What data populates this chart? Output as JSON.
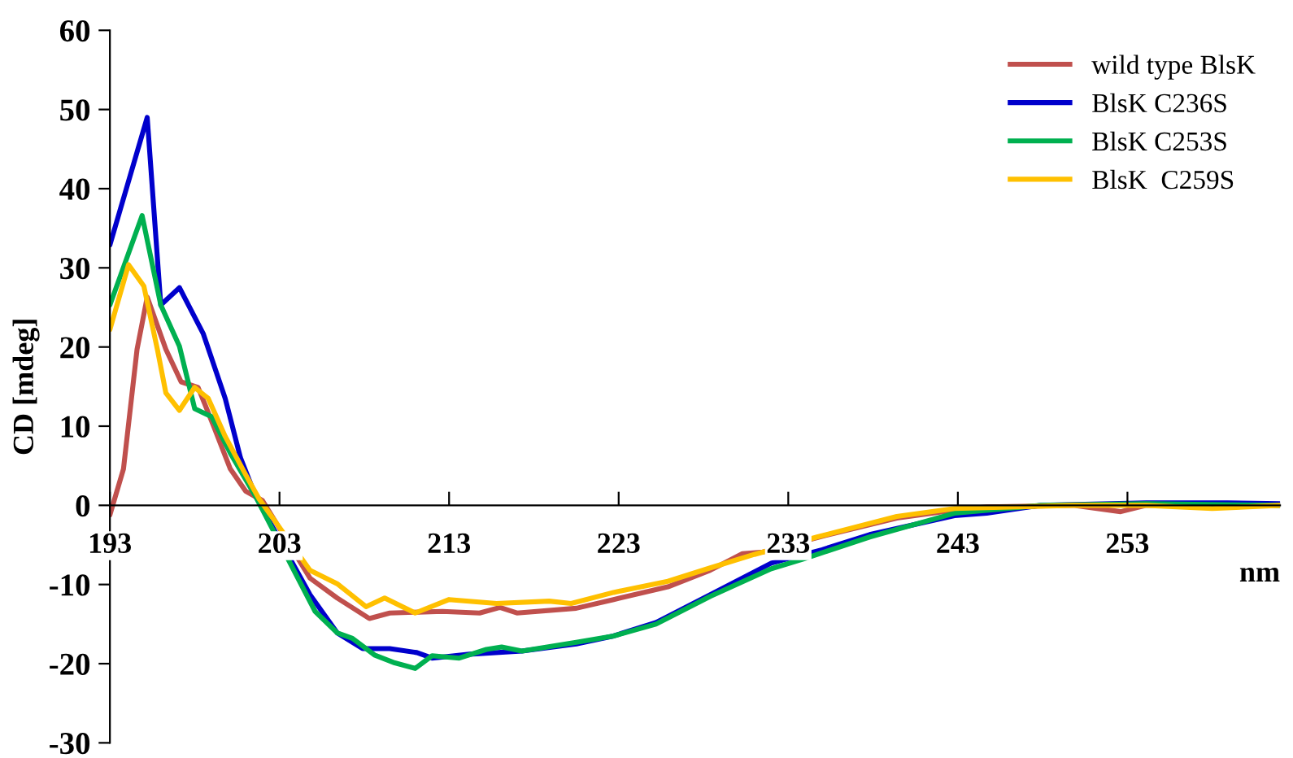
{
  "chart_data": {
    "type": "line",
    "xlabel": "nm",
    "ylabel": "CD [mdeg]",
    "xlim": [
      193,
      262
    ],
    "xticks": [
      193,
      203,
      213,
      223,
      233,
      243,
      253
    ],
    "ylim": [
      -30,
      60
    ],
    "yticks": [
      -30,
      -20,
      -10,
      0,
      10,
      20,
      30,
      40,
      50,
      60
    ],
    "grid": false,
    "legend": "top right",
    "marker": "none",
    "line_style": "solid",
    "series": [
      {
        "name": "wild type BlsK",
        "color": "#c0504d",
        "x": [
          193,
          193.8,
          194.6,
          195.2,
          196.3,
          197.2,
          198.2,
          199.1,
          200.1,
          201,
          202,
          204.8,
          206.4,
          208.3,
          209.5,
          212.6,
          214.8,
          216,
          217,
          220.5,
          222.7,
          225.9,
          228.4,
          230.3,
          231.5,
          235.2,
          239.4,
          242.8,
          244.7,
          249.8,
          252.6,
          254.1,
          258.9,
          262
        ],
        "values": [
          -1.2,
          4.6,
          19.7,
          26.3,
          19.7,
          15.6,
          14.9,
          10.1,
          4.6,
          1.8,
          0.6,
          -9.2,
          -11.7,
          -14.3,
          -13.6,
          -13.4,
          -13.6,
          -12.9,
          -13.6,
          -13.0,
          -11.9,
          -10.3,
          -8.2,
          -6.1,
          -5.9,
          -3.8,
          -1.6,
          -0.6,
          -0.2,
          0,
          -0.8,
          0,
          0,
          0
        ]
      },
      {
        "name": "BlsK C236S",
        "color": "#0000cc",
        "x": [
          193,
          195.2,
          196,
          197.1,
          198.5,
          199.8,
          200.7,
          201.6,
          204.8,
          206.4,
          207.9,
          209.5,
          211.1,
          212,
          214.2,
          217.3,
          220.5,
          222.7,
          225.2,
          228.4,
          232,
          235,
          237.8,
          242.8,
          244.7,
          247.9,
          254.1,
          258.9,
          262
        ],
        "values": [
          32.9,
          49,
          25.3,
          27.5,
          21.7,
          13.5,
          6,
          1.1,
          -11.3,
          -16.1,
          -18.1,
          -18.1,
          -18.6,
          -19.3,
          -18.8,
          -18.4,
          -17.5,
          -16.5,
          -14.8,
          -11.3,
          -7.3,
          -5.6,
          -3.7,
          -1.3,
          -1.0,
          0,
          0.3,
          0.3,
          0.2
        ]
      },
      {
        "name": "BlsK C253S",
        "color": "#00b050",
        "x": [
          193,
          194.9,
          196,
          197.1,
          198,
          199,
          200.1,
          201.6,
          205.1,
          206.4,
          207.3,
          208.6,
          209.8,
          211,
          212,
          213.6,
          215.2,
          216.1,
          217.3,
          220.5,
          222.7,
          225.2,
          228.4,
          232,
          234,
          237.8,
          242.8,
          247.9,
          254.1,
          262
        ],
        "values": [
          25.3,
          36.6,
          25.3,
          20.1,
          12.2,
          11.2,
          6.6,
          1.1,
          -13.4,
          -16.1,
          -16.8,
          -18.9,
          -19.9,
          -20.6,
          -19.0,
          -19.3,
          -18.2,
          -17.9,
          -18.4,
          -17.3,
          -16.5,
          -15.0,
          -11.5,
          -8.0,
          -6.7,
          -4.0,
          -1.0,
          0,
          0.2,
          0
        ]
      },
      {
        "name": "BlsK  C259S",
        "color": "#ffc000",
        "x": [
          193,
          194.1,
          195,
          195.8,
          196.3,
          197.1,
          198,
          198.8,
          199.8,
          201,
          201.8,
          204.8,
          206.4,
          208.1,
          209.2,
          211,
          213,
          215.8,
          218.9,
          220.2,
          222.7,
          225.9,
          228.4,
          231,
          234.7,
          239.4,
          242.8,
          249.8,
          254.1,
          258,
          262
        ],
        "values": [
          22.2,
          30.4,
          27.7,
          19.7,
          14.2,
          12.0,
          14.9,
          13.5,
          8.7,
          3.9,
          0.8,
          -8.2,
          -9.9,
          -12.8,
          -11.7,
          -13.6,
          -11.9,
          -12.4,
          -12.1,
          -12.4,
          -11.0,
          -9.6,
          -7.9,
          -6.2,
          -4.0,
          -1.4,
          -0.4,
          0,
          0,
          -0.4,
          0
        ]
      }
    ]
  }
}
